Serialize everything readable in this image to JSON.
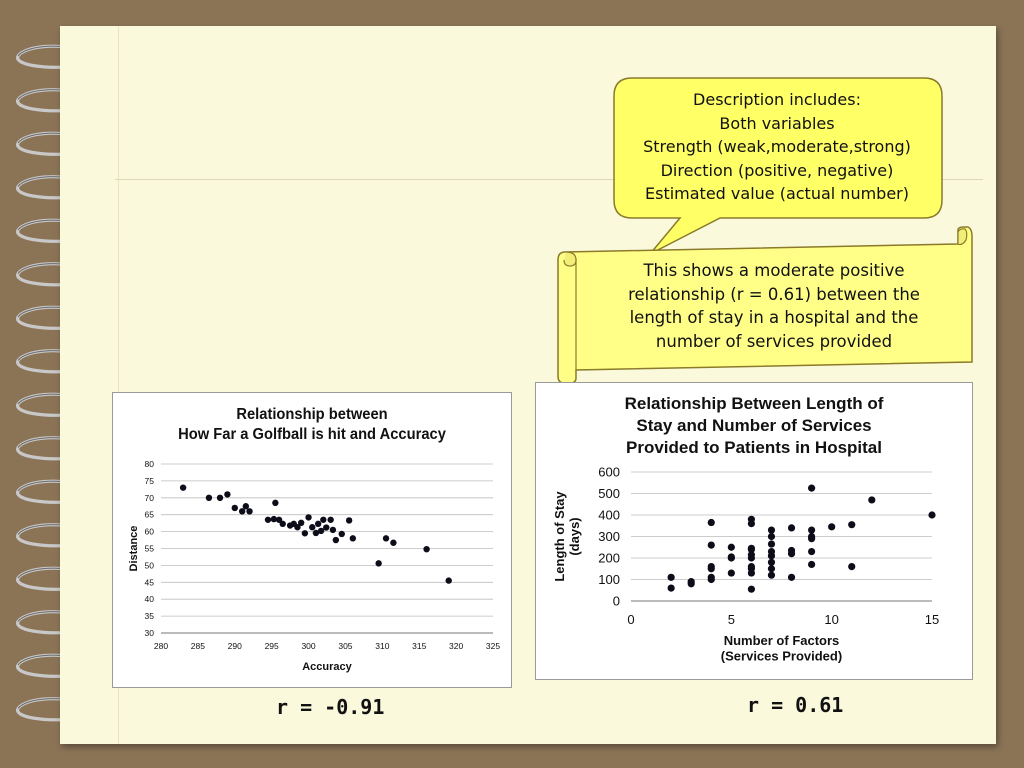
{
  "callout": {
    "lines": [
      "Description includes:",
      "Both variables",
      "Strength (weak,moderate,strong)",
      "Direction (positive, negative)",
      "Estimated value (actual number)"
    ]
  },
  "scroll": {
    "lines": [
      "This shows a moderate positive",
      "relationship (r = 0.61) between the",
      "length of stay in a hospital  and the",
      "number of services provided"
    ]
  },
  "r_labels": {
    "left": "r = -0.91",
    "right": "r = 0.61"
  },
  "colors": {
    "point": "#0d0d1a",
    "callout_fill": "#ffff66",
    "scroll_fill": "#ffff88",
    "outline": "#8a7a2a"
  },
  "chart_data": [
    {
      "type": "scatter",
      "title": "Relationship between\nHow Far a Golfball is hit and Accuracy",
      "xlabel": "Accuracy",
      "ylabel": "Distance",
      "xlim": [
        280,
        325
      ],
      "ylim": [
        30,
        80
      ],
      "xticks": [
        280,
        285,
        290,
        295,
        300,
        305,
        310,
        315,
        320,
        325
      ],
      "yticks": [
        30,
        35,
        40,
        45,
        50,
        55,
        60,
        65,
        70,
        75,
        80
      ],
      "grid": "horizontal",
      "points": [
        [
          283,
          73
        ],
        [
          286.5,
          70
        ],
        [
          288,
          70
        ],
        [
          289,
          71
        ],
        [
          290,
          67
        ],
        [
          291,
          66
        ],
        [
          291.5,
          67.5
        ],
        [
          292,
          66
        ],
        [
          294.5,
          63.5
        ],
        [
          295.3,
          63.7
        ],
        [
          295.5,
          68.5
        ],
        [
          296,
          63.5
        ],
        [
          296.5,
          62.3
        ],
        [
          297.5,
          61.8
        ],
        [
          298,
          62.3
        ],
        [
          298.5,
          61.3
        ],
        [
          299,
          62.6
        ],
        [
          299.5,
          59.5
        ],
        [
          300,
          64.2
        ],
        [
          300.5,
          61.3
        ],
        [
          301,
          59.6
        ],
        [
          301.3,
          62.3
        ],
        [
          301.7,
          60.2
        ],
        [
          302,
          63.5
        ],
        [
          302.4,
          61.2
        ],
        [
          303,
          63.5
        ],
        [
          303.3,
          60.5
        ],
        [
          303.7,
          57.5
        ],
        [
          304.5,
          59.3
        ],
        [
          305.5,
          63.3
        ],
        [
          306,
          58
        ],
        [
          309.5,
          50.6
        ],
        [
          310.5,
          58
        ],
        [
          311.5,
          56.7
        ],
        [
          316,
          54.8
        ],
        [
          319,
          45.5
        ]
      ]
    },
    {
      "type": "scatter",
      "title": "Relationship Between Length of\nStay and Number of Services\nProvided to Patients in Hospital",
      "xlabel": "Number of Factors\n(Services Provided)",
      "ylabel": "Length of Stay\n(days)",
      "xlim": [
        0,
        15
      ],
      "ylim": [
        0,
        600
      ],
      "xticks": [
        0,
        5,
        10,
        15
      ],
      "yticks": [
        0,
        100,
        200,
        300,
        400,
        500,
        600
      ],
      "grid": "horizontal",
      "points": [
        [
          2,
          60
        ],
        [
          2,
          110
        ],
        [
          3,
          80
        ],
        [
          3,
          90
        ],
        [
          4,
          100
        ],
        [
          4,
          110
        ],
        [
          4,
          150
        ],
        [
          4,
          160
        ],
        [
          4,
          260
        ],
        [
          4,
          365
        ],
        [
          5,
          130
        ],
        [
          5,
          200
        ],
        [
          5,
          205
        ],
        [
          5,
          250
        ],
        [
          6,
          55
        ],
        [
          6,
          130
        ],
        [
          6,
          150
        ],
        [
          6,
          160
        ],
        [
          6,
          200
        ],
        [
          6,
          215
        ],
        [
          6,
          240
        ],
        [
          6,
          245
        ],
        [
          6,
          360
        ],
        [
          6,
          380
        ],
        [
          7,
          120
        ],
        [
          7,
          150
        ],
        [
          7,
          180
        ],
        [
          7,
          210
        ],
        [
          7,
          230
        ],
        [
          7,
          265
        ],
        [
          7,
          300
        ],
        [
          7,
          330
        ],
        [
          8,
          110
        ],
        [
          8,
          220
        ],
        [
          8,
          235
        ],
        [
          8,
          340
        ],
        [
          9,
          170
        ],
        [
          9,
          230
        ],
        [
          9,
          290
        ],
        [
          9,
          300
        ],
        [
          9,
          330
        ],
        [
          9,
          525
        ],
        [
          10,
          345
        ],
        [
          11,
          160
        ],
        [
          11,
          355
        ],
        [
          12,
          470
        ],
        [
          15,
          400
        ]
      ]
    }
  ]
}
